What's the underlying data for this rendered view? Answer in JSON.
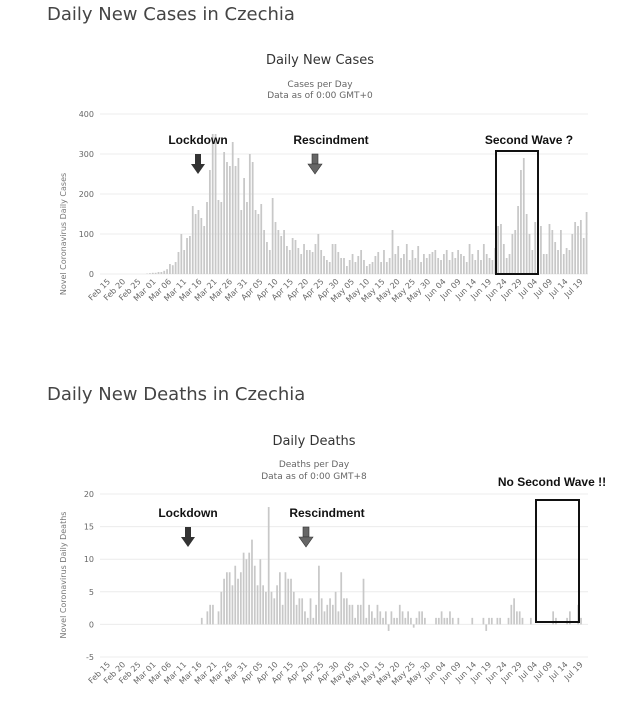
{
  "sections": {
    "cases_title": "Daily New Cases in Czechia",
    "deaths_title": "Daily New Deaths in Czechia"
  },
  "colors": {
    "bar": "#c8c8c8",
    "grid": "#ececec",
    "arrow": "#333333",
    "box": "#111111"
  },
  "chart_data": [
    {
      "type": "bar",
      "title": "Daily New Cases",
      "subtitle": "Cases per Day",
      "subtitle2": "Data as of 0:00 GMT+0",
      "ylabel": "Novel Coronavirus Daily Cases",
      "ylim": [
        0,
        400
      ],
      "yticks": [
        0,
        100,
        200,
        300,
        400
      ],
      "x_labels": [
        "Feb 15",
        "Feb 20",
        "Feb 25",
        "Mar 01",
        "Mar 06",
        "Mar 11",
        "Mar 16",
        "Mar 21",
        "Mar 26",
        "Mar 31",
        "Apr 05",
        "Apr 10",
        "Apr 15",
        "Apr 20",
        "Apr 25",
        "Apr 30",
        "May 05",
        "May 10",
        "May 15",
        "May 20",
        "May 25",
        "May 30",
        "Jun 04",
        "Jun 09",
        "Jun 14",
        "Jun 19",
        "Jun 24",
        "Jun 29",
        "Jul 04",
        "Jul 09",
        "Jul 14",
        "Jul 19"
      ],
      "values": [
        0,
        0,
        0,
        0,
        0,
        0,
        0,
        0,
        0,
        0,
        0,
        0,
        0,
        0,
        0,
        0,
        1,
        2,
        3,
        3,
        5,
        5,
        8,
        12,
        25,
        22,
        30,
        55,
        100,
        60,
        90,
        95,
        170,
        150,
        160,
        140,
        120,
        180,
        260,
        350,
        350,
        185,
        180,
        305,
        280,
        270,
        330,
        270,
        290,
        160,
        240,
        180,
        300,
        280,
        160,
        150,
        175,
        110,
        80,
        60,
        190,
        130,
        110,
        95,
        110,
        70,
        60,
        90,
        85,
        65,
        50,
        75,
        60,
        60,
        55,
        75,
        100,
        60,
        45,
        35,
        30,
        75,
        75,
        55,
        40,
        40,
        20,
        35,
        50,
        30,
        45,
        60,
        35,
        20,
        25,
        30,
        45,
        55,
        30,
        60,
        30,
        40,
        110,
        50,
        70,
        40,
        50,
        75,
        35,
        60,
        40,
        70,
        30,
        50,
        40,
        50,
        55,
        60,
        40,
        35,
        50,
        60,
        35,
        55,
        40,
        60,
        50,
        45,
        30,
        75,
        50,
        35,
        60,
        35,
        75,
        50,
        40,
        35,
        65,
        120,
        125,
        75,
        40,
        50,
        100,
        110,
        170,
        260,
        290,
        150,
        100,
        60,
        130,
        150,
        120,
        50,
        50,
        125,
        110,
        80,
        60,
        110,
        50,
        65,
        60,
        100,
        130,
        120,
        135,
        90,
        155
      ],
      "annotations": [
        {
          "label": "Lockdown",
          "arrow_label": "down arrow"
        },
        {
          "label": "Rescindment",
          "arrow_label": "down arrow"
        },
        {
          "label": "Second Wave ?",
          "box_label": "highlight box"
        }
      ]
    },
    {
      "type": "bar",
      "title": "Daily Deaths",
      "subtitle": "Deaths per Day",
      "subtitle2": "Data as of 0:00 GMT+8",
      "ylabel": "Novel Coronavirus Daily Deaths",
      "ylim": [
        -5,
        20
      ],
      "yticks": [
        -5,
        0,
        5,
        10,
        15,
        20
      ],
      "x_labels": [
        "Feb 15",
        "Feb 20",
        "Feb 25",
        "Mar 01",
        "Mar 06",
        "Mar 11",
        "Mar 16",
        "Mar 21",
        "Mar 26",
        "Mar 31",
        "Apr 05",
        "Apr 10",
        "Apr 15",
        "Apr 20",
        "Apr 25",
        "Apr 30",
        "May 05",
        "May 10",
        "May 15",
        "May 20",
        "May 25",
        "May 30",
        "Jun 04",
        "Jun 09",
        "Jun 14",
        "Jun 19",
        "Jun 24",
        "Jun 29",
        "Jul 04",
        "Jul 09",
        "Jul 14",
        "Jul 19"
      ],
      "values": [
        0,
        0,
        0,
        0,
        0,
        0,
        0,
        0,
        0,
        0,
        0,
        0,
        0,
        0,
        0,
        0,
        0,
        0,
        0,
        0,
        0,
        0,
        0,
        0,
        0,
        0,
        0,
        0,
        0,
        0,
        0,
        0,
        0,
        0,
        0,
        0,
        1,
        0,
        2,
        3,
        3,
        0,
        2,
        5,
        7,
        8,
        8,
        6,
        9,
        7,
        8,
        11,
        10,
        11,
        13,
        9,
        6,
        10,
        6,
        5,
        18,
        5,
        4,
        6,
        8,
        3,
        8,
        7,
        7,
        5,
        3,
        4,
        4,
        2,
        1,
        4,
        1,
        3,
        9,
        4,
        2,
        3,
        4,
        3,
        5,
        2,
        8,
        4,
        4,
        3,
        3,
        1,
        3,
        3,
        7,
        1,
        3,
        2,
        1,
        3,
        2,
        1,
        2,
        -1,
        2,
        1,
        1,
        3,
        2,
        1,
        2,
        1,
        -0.5,
        1,
        2,
        2,
        1,
        0,
        0,
        0,
        1,
        1,
        2,
        1,
        1,
        2,
        1,
        0,
        1,
        0,
        0,
        0,
        0,
        1,
        0,
        0,
        0,
        1,
        -1,
        1,
        1,
        0,
        1,
        1,
        0,
        0,
        1,
        3,
        4,
        2,
        2,
        1,
        0,
        0,
        1,
        0,
        0,
        0,
        0,
        0,
        0,
        0,
        2,
        1,
        0,
        0,
        0,
        1,
        2,
        0,
        0,
        3,
        1,
        0,
        0
      ],
      "annotations": [
        {
          "label": "Lockdown",
          "arrow_label": "down arrow"
        },
        {
          "label": "Rescindment",
          "arrow_label": "down arrow"
        },
        {
          "label": "No Second Wave !!",
          "box_label": "highlight box"
        }
      ]
    }
  ]
}
